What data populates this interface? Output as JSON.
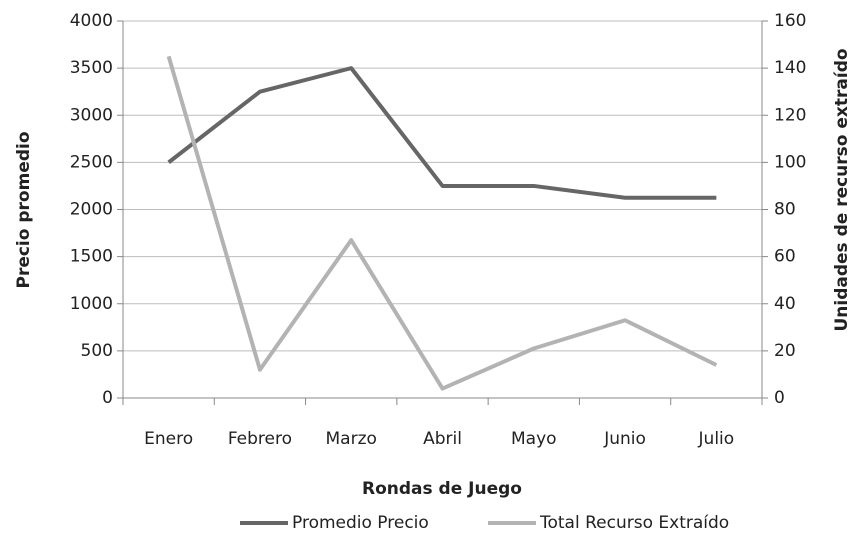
{
  "chart_data": {
    "type": "line",
    "x_label": "Rondas de Juego",
    "y_label": "Precio promedio",
    "y2_label": "Unidades de recurso extraído",
    "categories": [
      "Enero",
      "Febrero",
      "Marzo",
      "Abril",
      "Mayo",
      "Junio",
      "Julio"
    ],
    "series": [
      {
        "name": "Promedio Precio",
        "color": "#666666",
        "values": [
          2500,
          3250,
          3500,
          2250,
          2250,
          2125,
          2125
        ]
      },
      {
        "name": "Total Recurso Extraído",
        "color": "#b3b3b3",
        "axis": "y2",
        "values": [
          145,
          12,
          67,
          4,
          21,
          33,
          14
        ]
      }
    ],
    "ylim": [
      0,
      4000
    ],
    "yticks": [
      0,
      500,
      1000,
      1500,
      2000,
      2500,
      3000,
      3500,
      4000
    ],
    "y2lim": [
      0,
      160
    ],
    "y2ticks": [
      0,
      20,
      40,
      60,
      80,
      100,
      120,
      140,
      160
    ],
    "grid": true,
    "legend": "bottom"
  }
}
